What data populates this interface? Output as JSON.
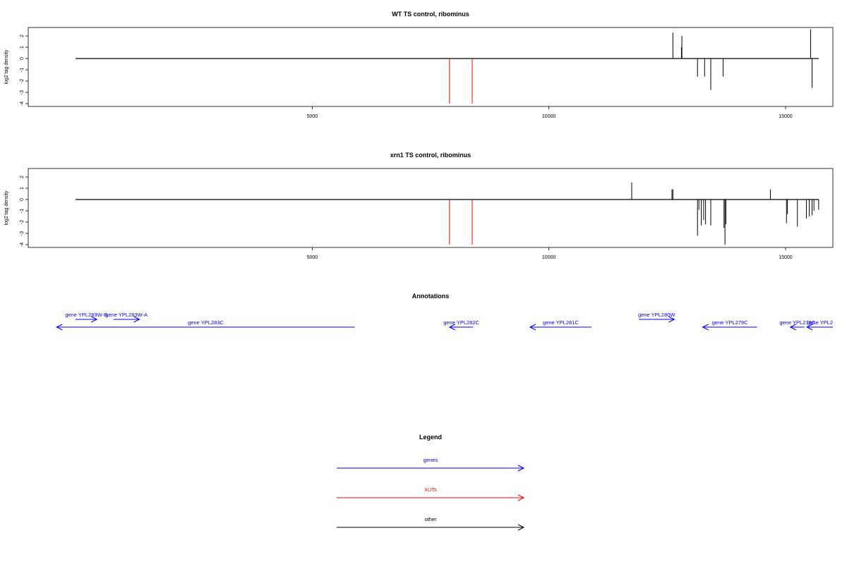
{
  "colors": {
    "genes": "#0000ff",
    "xuts": "#ff0000",
    "other": "#000000"
  },
  "chart_data": [
    {
      "type": "bar",
      "title": "WT TS control, ribominus",
      "ylabel": "log2 tag density",
      "xlim": [
        -1000,
        16000
      ],
      "ylim": [
        -4,
        2.5
      ],
      "xticks": [
        5000,
        10000,
        15000
      ],
      "yticks": [
        2,
        1,
        0,
        -1,
        -2,
        -3,
        -4
      ],
      "baseline": [
        0,
        15700
      ],
      "grid": false,
      "series": [
        {
          "color": "#ff0000",
          "x": [
            7900,
            8380
          ],
          "values": [
            -4,
            -4
          ]
        },
        {
          "color": "#000000",
          "x": [
            12620,
            12800,
            12810,
            13140,
            13290,
            13420,
            13680,
            15530,
            15560
          ],
          "values": [
            2.3,
            1.0,
            2.0,
            -1.6,
            -1.6,
            -2.8,
            -1.6,
            2.6,
            -2.6
          ]
        }
      ]
    },
    {
      "type": "bar",
      "title": "xrn1 TS control, ribominus",
      "ylabel": "log2 tag density",
      "xlim": [
        -1000,
        16000
      ],
      "ylim": [
        -4,
        2.5
      ],
      "xticks": [
        5000,
        10000,
        15000
      ],
      "yticks": [
        2,
        1,
        0,
        -1,
        -2,
        -3,
        -4
      ],
      "baseline": [
        0,
        15700
      ],
      "grid": false,
      "series": [
        {
          "color": "#ff0000",
          "x": [
            7900,
            8380
          ],
          "values": [
            -4,
            -4
          ]
        },
        {
          "color": "#000000",
          "x": [
            11750,
            12600,
            12620,
            13140,
            13170,
            13220,
            13270,
            13310,
            13420,
            13700,
            13720,
            13740,
            14680,
            15020,
            15040,
            15250,
            15440,
            15500,
            15560,
            15600,
            15700
          ],
          "values": [
            1.5,
            0.9,
            0.9,
            -3.2,
            -0.9,
            -2.3,
            -1.8,
            -2.2,
            -2.3,
            -2.5,
            -4.0,
            -2.2,
            0.9,
            -2.1,
            -1.3,
            -2.4,
            -1.7,
            -1.5,
            -1.4,
            -1.0,
            -0.9
          ]
        }
      ]
    }
  ],
  "annotations": {
    "title": "Annotations",
    "genes": [
      {
        "label": "gene YPL283W-B",
        "start": 0,
        "end": 450,
        "strand": "+",
        "row": 0
      },
      {
        "label": "gene YPL283W-A",
        "start": 800,
        "end": 1350,
        "strand": "+",
        "row": 0
      },
      {
        "label": "gene YPL283C",
        "start": -400,
        "end": 5900,
        "strand": "-",
        "row": 1
      },
      {
        "label": "gene YPL282C",
        "start": 7900,
        "end": 8400,
        "strand": "-",
        "row": 1
      },
      {
        "label": "gene YPL281C",
        "start": 9600,
        "end": 10900,
        "strand": "-",
        "row": 1
      },
      {
        "label": "gene YPL280W",
        "start": 11900,
        "end": 12650,
        "strand": "+",
        "row": 0
      },
      {
        "label": "gene YPL279C",
        "start": 13250,
        "end": 14400,
        "strand": "-",
        "row": 1
      },
      {
        "label": "gene YPL278C",
        "start": 15100,
        "end": 15400,
        "strand": "-",
        "row": 1
      },
      {
        "label": "gene YPL2",
        "start": 15450,
        "end": 16000,
        "strand": "-",
        "row": 1
      }
    ]
  },
  "legend": {
    "title": "Legend",
    "items": [
      {
        "label": "genes",
        "color": "#0000ff"
      },
      {
        "label": "XUTs",
        "color": "#ff0000"
      },
      {
        "label": "other",
        "color": "#000000"
      }
    ]
  }
}
